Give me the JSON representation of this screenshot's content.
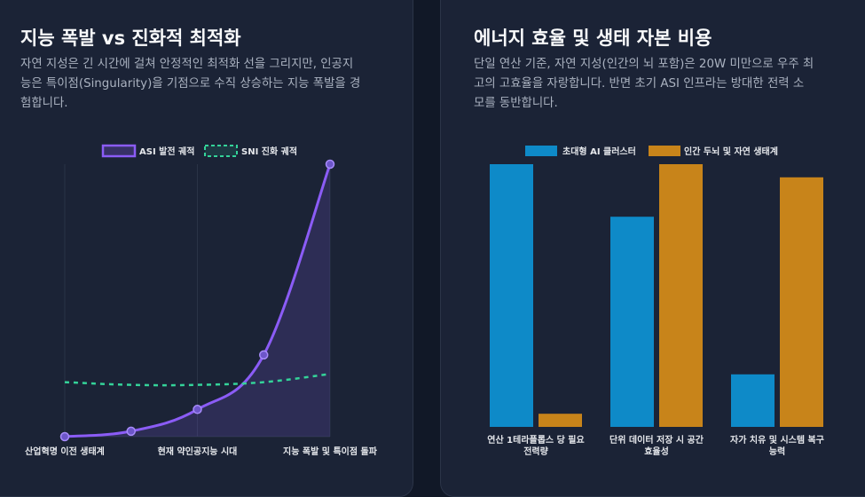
{
  "left": {
    "title": "지능 폭발 vs 진화적 최적화",
    "desc_lines": [
      "자연 지성은 긴 시간에 걸쳐 안정적인 최적화 선을 그리지만, 인공지",
      "능은 특이점(Singularity)을 기점으로 수직 상승하는 지능 폭발을 경",
      "험합니다."
    ]
  },
  "right": {
    "title": "에너지 효율 및 생태 자본 비용",
    "desc_lines": [
      "단일 연산 기준, 자연 지성(인간의 뇌 포함)은 20W 미만으로 우주 최",
      "고의 고효율을 자랑합니다. 반면 초기 ASI 인프라는 방대한 전력 소",
      "모를 동반합니다."
    ]
  },
  "chart_data": [
    {
      "type": "line",
      "title": "",
      "x_labels": [
        "산업혁명 이전 생태계",
        "현재 약인공지능 시대",
        "지능 폭발 및 특이점 돌파"
      ],
      "x": [
        0,
        1,
        2,
        3,
        4,
        5
      ],
      "ylim": [
        0,
        100
      ],
      "series": [
        {
          "name": "ASI 발전 궤적",
          "color": "#8b5cf6",
          "fill": true,
          "values": [
            0,
            2,
            10,
            30,
            100,
            null
          ]
        },
        {
          "name": "SNI 진화 궤적",
          "color": "#34d399",
          "dashed": true,
          "values": [
            20,
            19,
            19,
            20,
            23,
            null
          ]
        }
      ]
    },
    {
      "type": "bar",
      "categories": [
        [
          "연산 1테라플롭스 당 필요",
          "전력량"
        ],
        [
          "단위 데이터 저장 시 공간",
          "효율성"
        ],
        [
          "자가 치유 및 시스템 복구",
          "능력"
        ]
      ],
      "ylim": [
        0,
        100
      ],
      "series": [
        {
          "name": "초대형 AI 클러스터",
          "color": "#0e8ac8",
          "values": [
            100,
            80,
            20
          ]
        },
        {
          "name": "인간 두뇌 및 자연 생태계",
          "color": "#c8841a",
          "values": [
            5,
            100,
            95
          ]
        }
      ]
    }
  ]
}
